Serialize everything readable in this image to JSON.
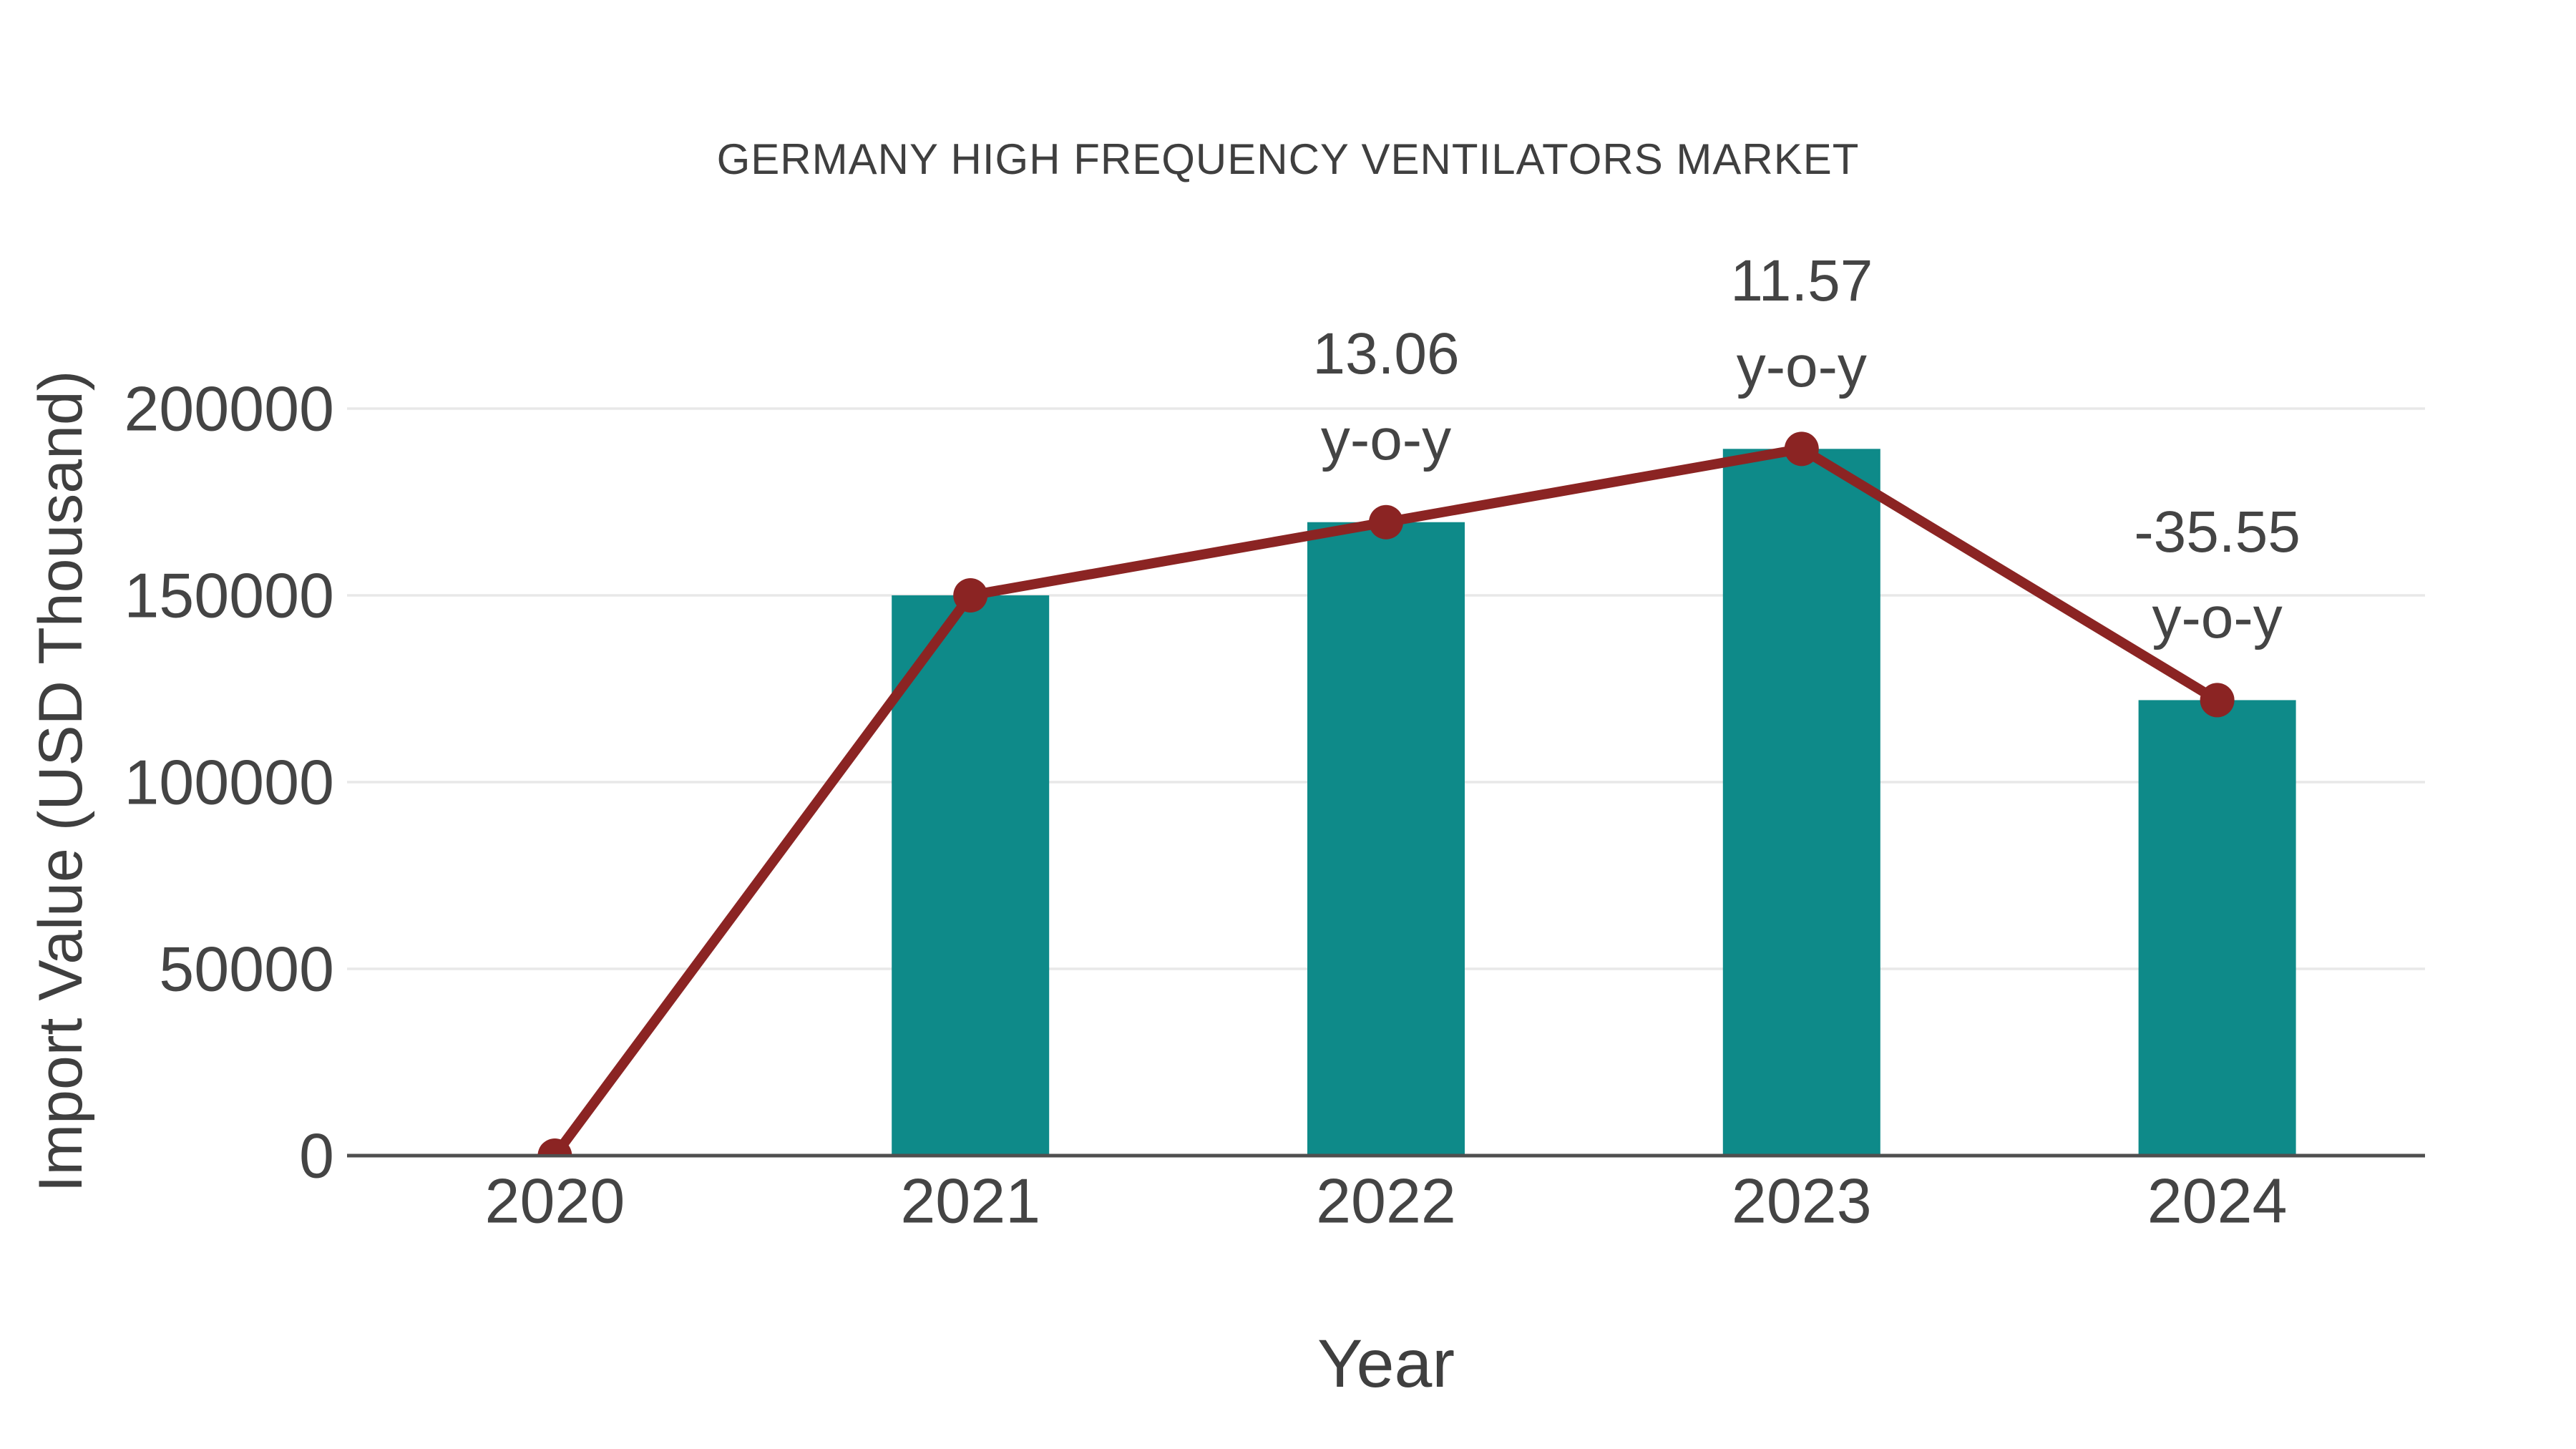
{
  "title": "GERMANY HIGH FREQUENCY VENTILATORS MARKET",
  "colors": {
    "bar": "#0e8a89",
    "line": "#8b2423",
    "marker": "#8b2423",
    "grid": "#e8e8e8",
    "axis_line": "#4f4f4f",
    "text": "#444444",
    "title_text": "#3f3f3f",
    "background": "#ffffff"
  },
  "chart_data": {
    "type": "bar",
    "title": "GERMANY HIGH FREQUENCY VENTILATORS MARKET",
    "xlabel": "Year",
    "ylabel": "Import Value (USD Thousand)",
    "categories": [
      "2020",
      "2021",
      "2022",
      "2023",
      "2024"
    ],
    "series": [
      {
        "name": "Import Value",
        "type": "bar",
        "values": [
          0,
          150000,
          169590,
          189212,
          121947
        ]
      },
      {
        "name": "y-o-y trend line",
        "type": "line",
        "values": [
          0,
          150000,
          169590,
          189212,
          121947
        ]
      }
    ],
    "annotations": [
      {
        "category": "2022",
        "value_label": "13.06",
        "suffix_label": "y-o-y"
      },
      {
        "category": "2023",
        "value_label": "11.57",
        "suffix_label": "y-o-y"
      },
      {
        "category": "2024",
        "value_label": "-35.55",
        "suffix_label": "y-o-y"
      }
    ],
    "yticks": [
      "0",
      "50000",
      "100000",
      "150000",
      "200000"
    ],
    "ytick_values": [
      0,
      50000,
      100000,
      150000,
      200000
    ],
    "ylim": [
      0,
      200000
    ],
    "grid": "horizontal",
    "legend": "none"
  }
}
